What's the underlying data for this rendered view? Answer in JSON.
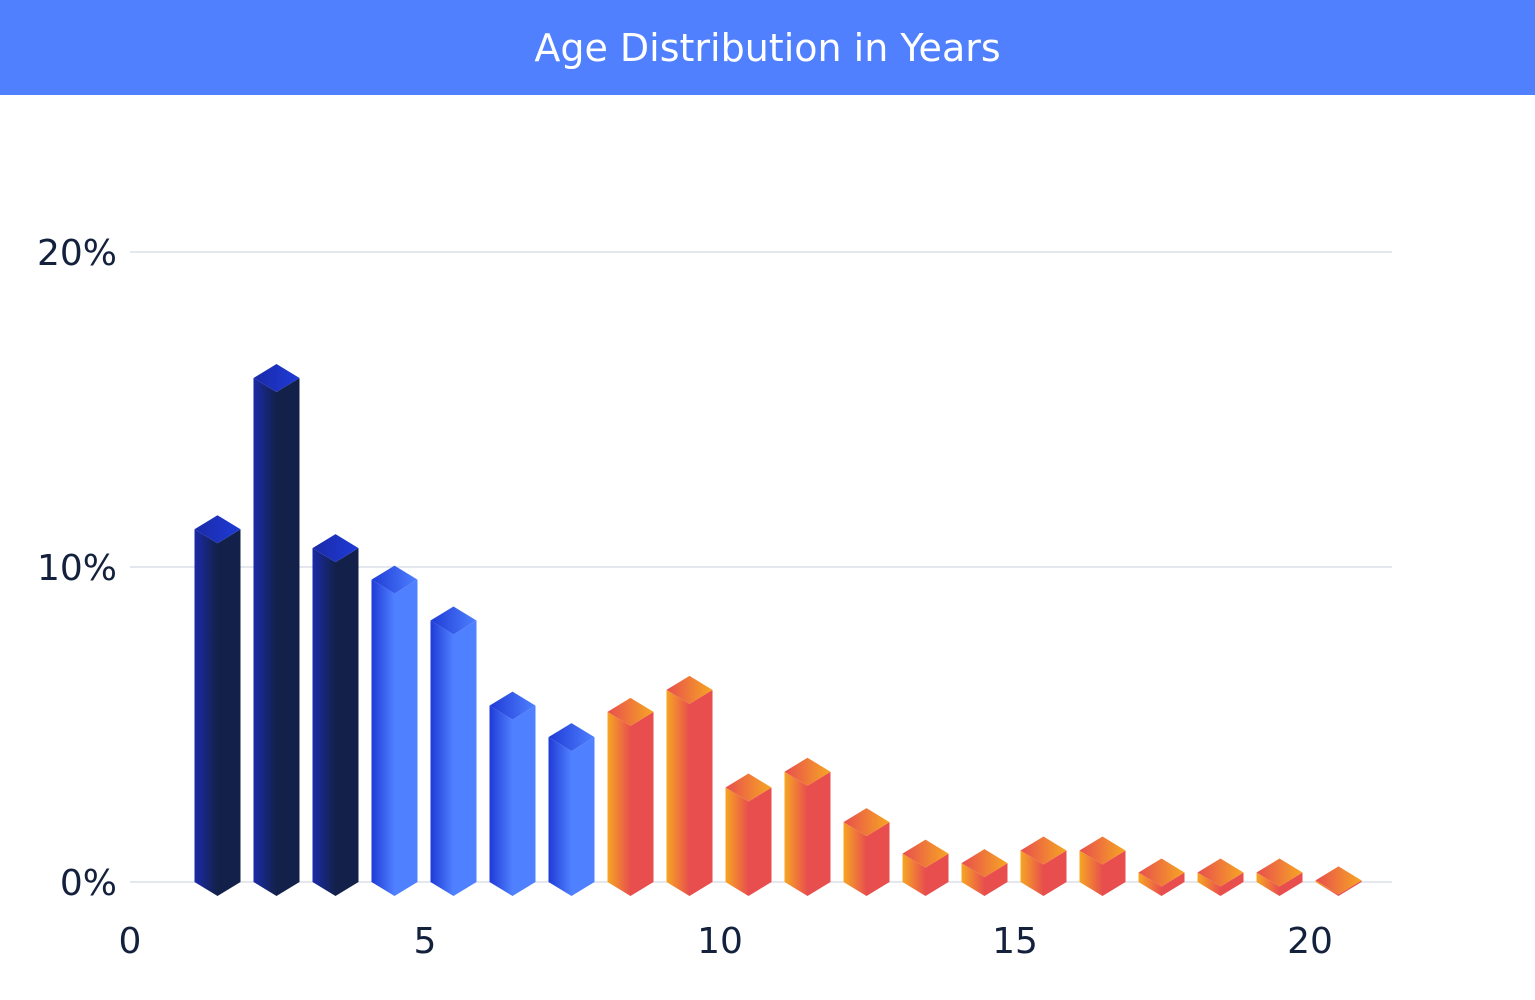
{
  "title": "Age Distribution in Years",
  "colors": {
    "header_bg": "#5080fd",
    "grid": "#e5e7ee",
    "text": "#14213d",
    "navy_dark": "#13214a",
    "navy_light": "#1a2aa8",
    "blue_dark": "#1f3bd6",
    "blue_light": "#4f80ff",
    "red": "#e84e4e",
    "orange": "#f6a623"
  },
  "chart_data": {
    "type": "bar",
    "title": "Age Distribution in Years",
    "xlabel": "",
    "ylabel": "",
    "x": [
      1.5,
      2.5,
      3.5,
      4.5,
      5.5,
      6.5,
      7.5,
      8.5,
      9.5,
      10.5,
      11.5,
      12.5,
      13.5,
      14.5,
      15.5,
      16.5,
      17.5,
      18.5,
      19.5,
      20.5
    ],
    "values": [
      11.2,
      16.0,
      10.6,
      9.6,
      8.3,
      5.6,
      4.6,
      5.4,
      6.1,
      3.0,
      3.5,
      1.9,
      0.9,
      0.6,
      1.0,
      1.0,
      0.3,
      0.3,
      0.3,
      0.05
    ],
    "color_groups": [
      "navy",
      "navy",
      "navy",
      "blue",
      "blue",
      "blue",
      "blue",
      "orange",
      "orange",
      "orange",
      "orange",
      "orange",
      "orange",
      "orange",
      "orange",
      "orange",
      "orange",
      "orange",
      "orange",
      "orange"
    ],
    "xlim": [
      0,
      20.5
    ],
    "ylim": [
      0,
      20
    ],
    "x_ticks": [
      "0",
      "5",
      "10",
      "15",
      "20"
    ],
    "x_tick_values": [
      0,
      5,
      10,
      15,
      20
    ],
    "y_ticks": [
      "0%",
      "10%",
      "20%"
    ],
    "y_tick_values": [
      0,
      10,
      20
    ],
    "grid": true,
    "legend": "none"
  }
}
